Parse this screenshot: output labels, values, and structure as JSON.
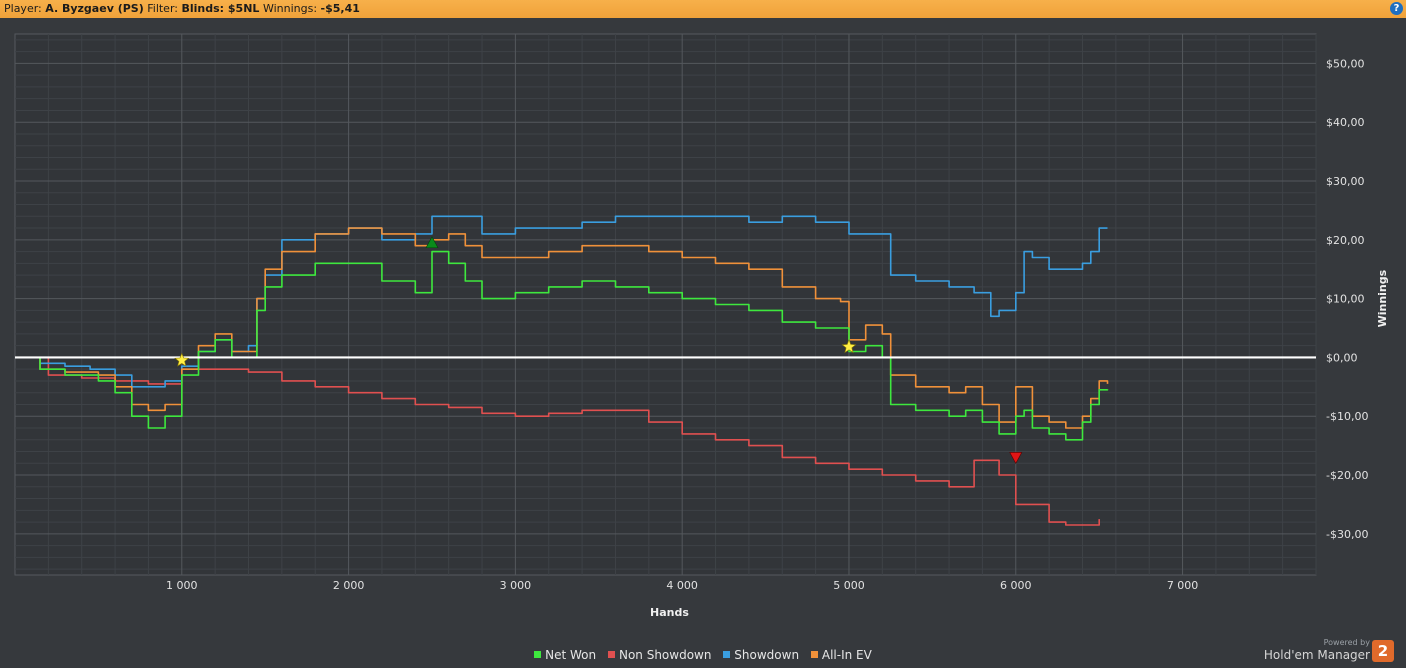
{
  "topbar": {
    "player_label": "Player:",
    "player_value": "A. Byzgaev (PS)",
    "filter_label": "Filter:",
    "filter_value": "Blinds: $5NL",
    "winnings_label": "Winnings:",
    "winnings_value": "-$5,41",
    "help_glyph": "?"
  },
  "legend": {
    "items": [
      {
        "label": "Net Won",
        "color": "#3ee83e"
      },
      {
        "label": "Non Showdown",
        "color": "#e05050"
      },
      {
        "label": "Showdown",
        "color": "#3a9ee0"
      },
      {
        "label": "All-In EV",
        "color": "#f0913a"
      }
    ]
  },
  "powered": {
    "line1": "Powered by",
    "line2": "Hold'em Manager",
    "logo": "2"
  },
  "chart_data": {
    "type": "line",
    "title": "",
    "xlabel": "Hands",
    "ylabel": "Winnings",
    "xlim": [
      0,
      7800
    ],
    "ylim": [
      -37,
      55
    ],
    "x_ticks": [
      1000,
      2000,
      3000,
      4000,
      5000,
      6000,
      7000
    ],
    "x_tick_labels": [
      "1 000",
      "2 000",
      "3 000",
      "4 000",
      "5 000",
      "6 000",
      "7 000"
    ],
    "y_ticks": [
      50,
      40,
      30,
      20,
      10,
      0,
      -10,
      -20,
      -30
    ],
    "y_tick_labels": [
      "$50,00",
      "$40,00",
      "$30,00",
      "$20,00",
      "$10,00",
      "$0,00",
      "-$10,00",
      "-$20,00",
      "-$30,00"
    ],
    "grid": true,
    "zero_line": true,
    "series": [
      {
        "name": "Non Showdown",
        "color": "#e05050",
        "points": [
          [
            0,
            0
          ],
          [
            200,
            -3
          ],
          [
            400,
            -3.5
          ],
          [
            600,
            -4
          ],
          [
            800,
            -4.5
          ],
          [
            1000,
            -2
          ],
          [
            1200,
            -2
          ],
          [
            1400,
            -2.5
          ],
          [
            1600,
            -4
          ],
          [
            1800,
            -5
          ],
          [
            2000,
            -6
          ],
          [
            2200,
            -7
          ],
          [
            2400,
            -8
          ],
          [
            2600,
            -8.5
          ],
          [
            2800,
            -9.5
          ],
          [
            3000,
            -10
          ],
          [
            3200,
            -9.5
          ],
          [
            3400,
            -9
          ],
          [
            3600,
            -9
          ],
          [
            3800,
            -11
          ],
          [
            4000,
            -13
          ],
          [
            4200,
            -14
          ],
          [
            4400,
            -15
          ],
          [
            4600,
            -17
          ],
          [
            4800,
            -18
          ],
          [
            5000,
            -19
          ],
          [
            5200,
            -20
          ],
          [
            5400,
            -21
          ],
          [
            5600,
            -22
          ],
          [
            5750,
            -17.5
          ],
          [
            5900,
            -20
          ],
          [
            6000,
            -25
          ],
          [
            6200,
            -28
          ],
          [
            6300,
            -28.5
          ],
          [
            6400,
            -28.5
          ],
          [
            6500,
            -27.5
          ]
        ]
      },
      {
        "name": "Showdown",
        "color": "#3a9ee0",
        "points": [
          [
            0,
            0
          ],
          [
            150,
            -1
          ],
          [
            300,
            -1.5
          ],
          [
            450,
            -2
          ],
          [
            600,
            -3
          ],
          [
            700,
            -5
          ],
          [
            800,
            -5
          ],
          [
            900,
            -4
          ],
          [
            1000,
            -1.5
          ],
          [
            1100,
            1
          ],
          [
            1200,
            3
          ],
          [
            1300,
            1
          ],
          [
            1400,
            2
          ],
          [
            1450,
            10
          ],
          [
            1500,
            14
          ],
          [
            1600,
            20
          ],
          [
            1800,
            21
          ],
          [
            2000,
            22
          ],
          [
            2200,
            20
          ],
          [
            2400,
            21
          ],
          [
            2500,
            24
          ],
          [
            2600,
            24
          ],
          [
            2800,
            21
          ],
          [
            3000,
            22
          ],
          [
            3200,
            22
          ],
          [
            3400,
            23
          ],
          [
            3600,
            24
          ],
          [
            3800,
            24
          ],
          [
            4000,
            24
          ],
          [
            4200,
            24
          ],
          [
            4400,
            23
          ],
          [
            4600,
            24
          ],
          [
            4800,
            23
          ],
          [
            5000,
            21
          ],
          [
            5200,
            21
          ],
          [
            5250,
            14
          ],
          [
            5400,
            13
          ],
          [
            5600,
            12
          ],
          [
            5750,
            11
          ],
          [
            5850,
            7
          ],
          [
            5900,
            8
          ],
          [
            6000,
            11
          ],
          [
            6050,
            18
          ],
          [
            6100,
            17
          ],
          [
            6200,
            15
          ],
          [
            6300,
            15
          ],
          [
            6400,
            16
          ],
          [
            6450,
            18
          ],
          [
            6500,
            22
          ],
          [
            6550,
            22
          ]
        ]
      },
      {
        "name": "All-In EV",
        "color": "#f0913a",
        "points": [
          [
            0,
            0
          ],
          [
            150,
            -2
          ],
          [
            300,
            -2.5
          ],
          [
            500,
            -3
          ],
          [
            600,
            -5
          ],
          [
            700,
            -8
          ],
          [
            800,
            -9
          ],
          [
            900,
            -8
          ],
          [
            1000,
            -2
          ],
          [
            1100,
            2
          ],
          [
            1200,
            4
          ],
          [
            1300,
            1
          ],
          [
            1400,
            1
          ],
          [
            1450,
            10
          ],
          [
            1500,
            15
          ],
          [
            1600,
            18
          ],
          [
            1800,
            21
          ],
          [
            2000,
            22
          ],
          [
            2200,
            21
          ],
          [
            2400,
            19
          ],
          [
            2500,
            20
          ],
          [
            2600,
            21
          ],
          [
            2700,
            19
          ],
          [
            2800,
            17
          ],
          [
            3000,
            17
          ],
          [
            3200,
            18
          ],
          [
            3400,
            19
          ],
          [
            3600,
            19
          ],
          [
            3800,
            18
          ],
          [
            4000,
            17
          ],
          [
            4200,
            16
          ],
          [
            4400,
            15
          ],
          [
            4600,
            12
          ],
          [
            4800,
            10
          ],
          [
            4950,
            9.5
          ],
          [
            5000,
            3
          ],
          [
            5100,
            5.5
          ],
          [
            5200,
            4
          ],
          [
            5250,
            -3
          ],
          [
            5400,
            -5
          ],
          [
            5600,
            -6
          ],
          [
            5700,
            -5
          ],
          [
            5800,
            -8
          ],
          [
            5900,
            -11
          ],
          [
            6000,
            -5
          ],
          [
            6100,
            -10
          ],
          [
            6200,
            -11
          ],
          [
            6300,
            -12
          ],
          [
            6400,
            -10
          ],
          [
            6450,
            -7
          ],
          [
            6500,
            -4
          ],
          [
            6550,
            -4.5
          ]
        ]
      },
      {
        "name": "Net Won",
        "color": "#3ee83e",
        "points": [
          [
            0,
            0
          ],
          [
            150,
            -2
          ],
          [
            300,
            -3
          ],
          [
            500,
            -4
          ],
          [
            600,
            -6
          ],
          [
            700,
            -10
          ],
          [
            800,
            -12
          ],
          [
            900,
            -10
          ],
          [
            1000,
            -3
          ],
          [
            1100,
            1
          ],
          [
            1200,
            3
          ],
          [
            1300,
            0
          ],
          [
            1400,
            0
          ],
          [
            1450,
            8
          ],
          [
            1500,
            12
          ],
          [
            1600,
            14
          ],
          [
            1800,
            16
          ],
          [
            2000,
            16
          ],
          [
            2200,
            13
          ],
          [
            2400,
            11
          ],
          [
            2500,
            18
          ],
          [
            2600,
            16
          ],
          [
            2700,
            13
          ],
          [
            2800,
            10
          ],
          [
            3000,
            11
          ],
          [
            3200,
            12
          ],
          [
            3400,
            13
          ],
          [
            3600,
            12
          ],
          [
            3800,
            11
          ],
          [
            4000,
            10
          ],
          [
            4200,
            9
          ],
          [
            4400,
            8
          ],
          [
            4600,
            6
          ],
          [
            4800,
            5
          ],
          [
            5000,
            1
          ],
          [
            5100,
            2
          ],
          [
            5200,
            0
          ],
          [
            5250,
            -8
          ],
          [
            5400,
            -9
          ],
          [
            5600,
            -10
          ],
          [
            5700,
            -9
          ],
          [
            5800,
            -11
          ],
          [
            5900,
            -13
          ],
          [
            6000,
            -10
          ],
          [
            6050,
            -9
          ],
          [
            6100,
            -12
          ],
          [
            6200,
            -13
          ],
          [
            6300,
            -14
          ],
          [
            6400,
            -11
          ],
          [
            6450,
            -8
          ],
          [
            6500,
            -5.5
          ],
          [
            6550,
            -5.4
          ]
        ]
      }
    ],
    "markers": [
      {
        "type": "star",
        "x": 1000,
        "y": -0.5,
        "color": "#ffee44"
      },
      {
        "type": "triangle-up",
        "x": 2500,
        "y": 19.5,
        "color": "#0a8a1a"
      },
      {
        "type": "star",
        "x": 5000,
        "y": 1.8,
        "color": "#ffee44"
      },
      {
        "type": "triangle-down",
        "x": 6000,
        "y": -17,
        "color": "#e01515"
      }
    ]
  }
}
